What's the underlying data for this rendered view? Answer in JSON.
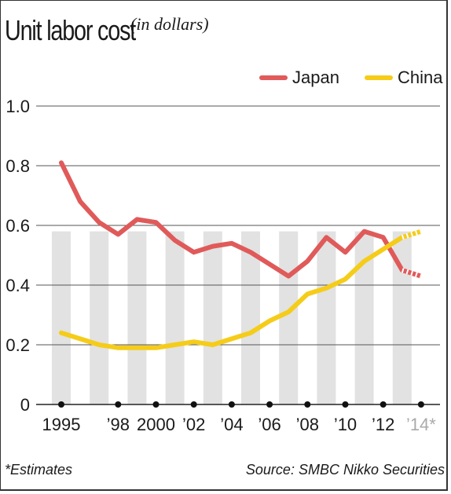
{
  "title": "Unit labor cost",
  "subtitle": "(in dollars)",
  "footnote": "*Estimates",
  "source": "Source: SMBC Nikko Securities",
  "colors": {
    "japan": "#e05a5a",
    "china": "#f5cc19",
    "bar": "#e2e2e2",
    "grid": "#555555",
    "estimate_tick": "#aaaaaa"
  },
  "chart_data": {
    "type": "line",
    "x": [
      1995,
      1996,
      1997,
      1998,
      1999,
      2000,
      2001,
      2002,
      2003,
      2004,
      2005,
      2006,
      2007,
      2008,
      2009,
      2010,
      2011,
      2012,
      2013,
      2014
    ],
    "series": [
      {
        "name": "Japan",
        "values": [
          0.81,
          0.68,
          0.61,
          0.57,
          0.62,
          0.61,
          0.55,
          0.51,
          0.53,
          0.54,
          0.51,
          0.47,
          0.43,
          0.48,
          0.56,
          0.51,
          0.58,
          0.56,
          0.45,
          0.43
        ],
        "estimated_from": 2013
      },
      {
        "name": "China",
        "values": [
          0.24,
          0.22,
          0.2,
          0.19,
          0.19,
          0.19,
          0.2,
          0.21,
          0.2,
          0.22,
          0.24,
          0.28,
          0.31,
          0.37,
          0.39,
          0.42,
          0.48,
          0.52,
          0.56,
          0.58
        ],
        "estimated_from": 2013
      }
    ],
    "bars_at_x": [
      1995,
      1997,
      1999,
      2001,
      2003,
      2005,
      2007,
      2009,
      2011,
      2013
    ],
    "bars_value": 0.58,
    "ylim": [
      0,
      1.0
    ],
    "yticks": [
      0,
      0.2,
      0.4,
      0.6,
      0.8,
      1.0
    ],
    "ytick_labels": [
      "0",
      "0.2",
      "0.4",
      "0.6",
      "0.8",
      "1.0"
    ],
    "xtick_positions": [
      1995,
      1998,
      2000,
      2002,
      2004,
      2006,
      2008,
      2010,
      2012,
      2014
    ],
    "xtick_labels": [
      "1995",
      "’98",
      "2000",
      "’02",
      "’04",
      "’06",
      "’08",
      "’10",
      "’12",
      "’14*"
    ],
    "estimate_labels": [
      "’14*"
    ],
    "grid": true,
    "legend_position": "top-right"
  }
}
